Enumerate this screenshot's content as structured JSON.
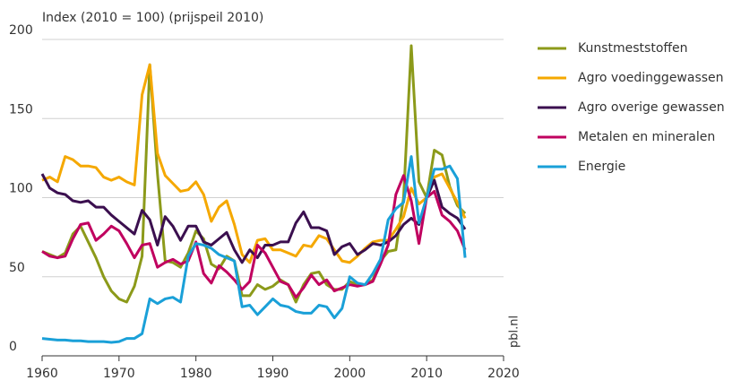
{
  "chart_data": {
    "type": "line",
    "y_label": "Index (2010 = 100) (prijspeil 2010)",
    "watermark": "pbl.nl",
    "x": [
      1960,
      1961,
      1962,
      1963,
      1964,
      1965,
      1966,
      1967,
      1968,
      1969,
      1970,
      1971,
      1972,
      1973,
      1974,
      1975,
      1976,
      1977,
      1978,
      1979,
      1980,
      1981,
      1982,
      1983,
      1984,
      1985,
      1986,
      1987,
      1988,
      1989,
      1990,
      1991,
      1992,
      1993,
      1994,
      1995,
      1996,
      1997,
      1998,
      1999,
      2000,
      2001,
      2002,
      2003,
      2004,
      2005,
      2006,
      2007,
      2008,
      2009,
      2010,
      2011,
      2012,
      2013,
      2014,
      2015
    ],
    "xlim": [
      1960,
      2020
    ],
    "xticks": [
      1960,
      1970,
      1980,
      1990,
      2000,
      2010,
      2020
    ],
    "ylim": [
      0,
      200
    ],
    "yticks": [
      0,
      50,
      100,
      150,
      200
    ],
    "grid": true,
    "series": [
      {
        "name": "Kunstmeststoffen",
        "color": "#8c9a1a",
        "values": [
          66,
          64,
          62,
          65,
          77,
          82,
          72,
          62,
          50,
          41,
          36,
          34,
          44,
          63,
          184,
          115,
          60,
          59,
          56,
          65,
          79,
          74,
          58,
          55,
          63,
          60,
          38,
          38,
          45,
          42,
          44,
          48,
          45,
          34,
          45,
          52,
          53,
          45,
          42,
          42,
          47,
          45,
          45,
          48,
          60,
          66,
          67,
          100,
          196,
          110,
          100,
          130,
          127,
          107,
          95,
          90
        ]
      },
      {
        "name": "Agro voedinggewassen",
        "color": "#f5a800",
        "values": [
          111,
          113,
          110,
          126,
          124,
          120,
          120,
          119,
          113,
          111,
          113,
          110,
          108,
          165,
          184,
          128,
          114,
          109,
          104,
          105,
          110,
          102,
          85,
          94,
          98,
          83,
          64,
          59,
          73,
          74,
          67,
          67,
          65,
          63,
          70,
          69,
          76,
          74,
          67,
          60,
          59,
          63,
          68,
          72,
          73,
          73,
          80,
          88,
          106,
          96,
          100,
          113,
          115,
          106,
          97,
          87
        ]
      },
      {
        "name": "Agro overige gewassen",
        "color": "#3b0f4f",
        "values": [
          115,
          106,
          103,
          102,
          98,
          97,
          98,
          94,
          94,
          89,
          85,
          81,
          77,
          92,
          86,
          70,
          88,
          82,
          73,
          82,
          82,
          72,
          70,
          74,
          78,
          67,
          59,
          67,
          62,
          70,
          70,
          72,
          72,
          84,
          91,
          81,
          81,
          79,
          64,
          69,
          71,
          64,
          67,
          71,
          70,
          72,
          76,
          83,
          87,
          83,
          100,
          111,
          94,
          90,
          87,
          80
        ]
      },
      {
        "name": "Metalen en mineralen",
        "color": "#c0005f",
        "values": [
          66,
          63,
          62,
          63,
          74,
          83,
          84,
          73,
          77,
          82,
          79,
          71,
          62,
          70,
          71,
          56,
          59,
          61,
          58,
          60,
          72,
          52,
          46,
          57,
          53,
          48,
          42,
          47,
          70,
          65,
          56,
          47,
          45,
          37,
          43,
          51,
          45,
          48,
          41,
          43,
          45,
          44,
          45,
          47,
          58,
          70,
          102,
          114,
          98,
          71,
          100,
          104,
          89,
          85,
          79,
          67
        ]
      },
      {
        "name": "Energie",
        "color": "#1aa0d8",
        "values": [
          11,
          10.5,
          10,
          10,
          9.5,
          9.5,
          9,
          9,
          9,
          8.5,
          9,
          11,
          11,
          14,
          36,
          33,
          36,
          37,
          34,
          63,
          71,
          70,
          68,
          64,
          62,
          60,
          31,
          32,
          26,
          31,
          36,
          32,
          31,
          28,
          27,
          27,
          32,
          31,
          24,
          30,
          50,
          46,
          45,
          52,
          61,
          86,
          93,
          97,
          126,
          84,
          100,
          118,
          118,
          120,
          112,
          62
        ]
      }
    ]
  }
}
